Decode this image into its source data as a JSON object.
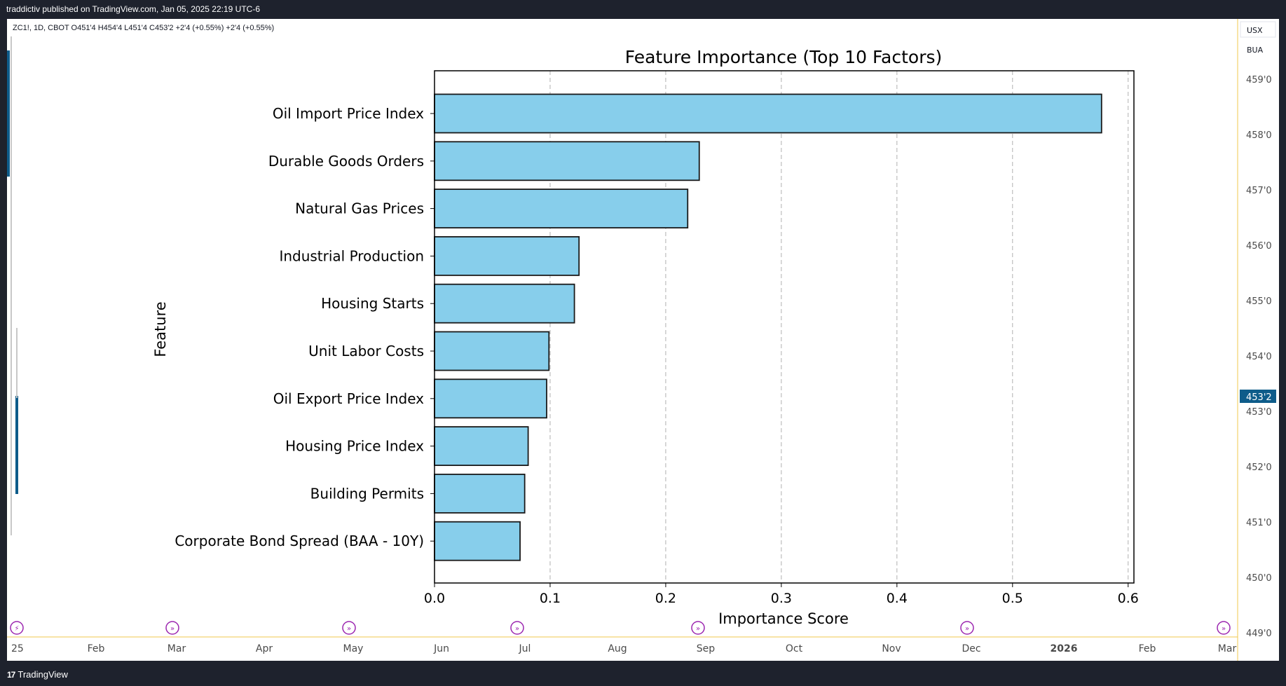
{
  "header": {
    "publish_text": "traddictiv published on TradingView.com, Jan 05, 2025 22:19 UTC-6"
  },
  "legend": {
    "symbol_line": "ZC1!, 1D, CBOT  O451'4  H454'4  L451'4  C453'2  +2'4 (+0.55%)  +2'4 (+0.55%)"
  },
  "price_axis": {
    "currency": "USX",
    "unit": "BUA",
    "labels": [
      "459'0",
      "458'0",
      "457'0",
      "456'0",
      "455'0",
      "454'0",
      "453'0",
      "452'0",
      "451'0",
      "450'0",
      "449'0"
    ],
    "current_price": "453'2",
    "current_price_color": "#0e5c8a"
  },
  "time_axis": {
    "labels": [
      "25",
      "Feb",
      "Mar",
      "Apr",
      "May",
      "Jun",
      "Jul",
      "Aug",
      "Sep",
      "Oct",
      "Nov",
      "Dec",
      "2026",
      "Feb",
      "Mar"
    ]
  },
  "footer": {
    "brand": "TradingView"
  },
  "colors": {
    "bar_fill": "#87ceeb",
    "bar_edge": "#1a1a1a",
    "accent": "#f2c94c",
    "event_icon": "#9c27b0"
  },
  "chart_data": {
    "type": "bar",
    "orientation": "horizontal",
    "title": "Feature Importance (Top 10 Factors)",
    "xlabel": "Importance Score",
    "ylabel": "Feature",
    "categories": [
      "Oil Import Price Index",
      "Durable Goods Orders",
      "Natural Gas Prices",
      "Industrial Production",
      "Housing Starts",
      "Unit Labor Costs",
      "Oil Export Price Index",
      "Housing Price Index",
      "Building Permits",
      "Corporate Bond Spread (BAA - 10Y)"
    ],
    "values": [
      0.577,
      0.229,
      0.219,
      0.125,
      0.121,
      0.099,
      0.097,
      0.081,
      0.078,
      0.074
    ],
    "xlim": [
      0,
      0.605
    ],
    "xticks": [
      "0.0",
      "0.1",
      "0.2",
      "0.3",
      "0.4",
      "0.5",
      "0.6"
    ],
    "grid": "x-dashed"
  }
}
